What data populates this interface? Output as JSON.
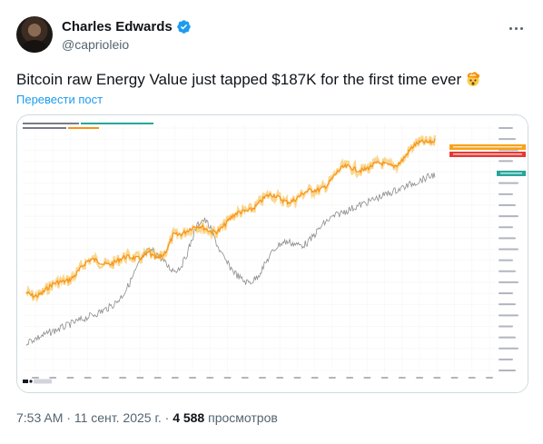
{
  "author": {
    "name": "Charles Edwards",
    "handle": "@caprioleio",
    "verified_color": "#1d9bf0"
  },
  "tweet": {
    "text": "Bitcoin raw Energy Value just tapped $187K for the first time ever",
    "emoji": "exploding-head-emoji",
    "translate_label": "Перевести пост"
  },
  "meta": {
    "time": "7:53 AM",
    "separator": " · ",
    "date": "11 сент. 2025 г.",
    "views_count": "4 588",
    "views_label": "просмотров"
  },
  "chart_data": {
    "type": "line",
    "yscale": "log",
    "series": [
      {
        "color": "#f7931a"
      },
      {
        "color": "#8c8c8c"
      }
    ],
    "price_tag_color": "#26a69a",
    "value_tag_colors": [
      "#f7a21a",
      "#e53935"
    ]
  }
}
